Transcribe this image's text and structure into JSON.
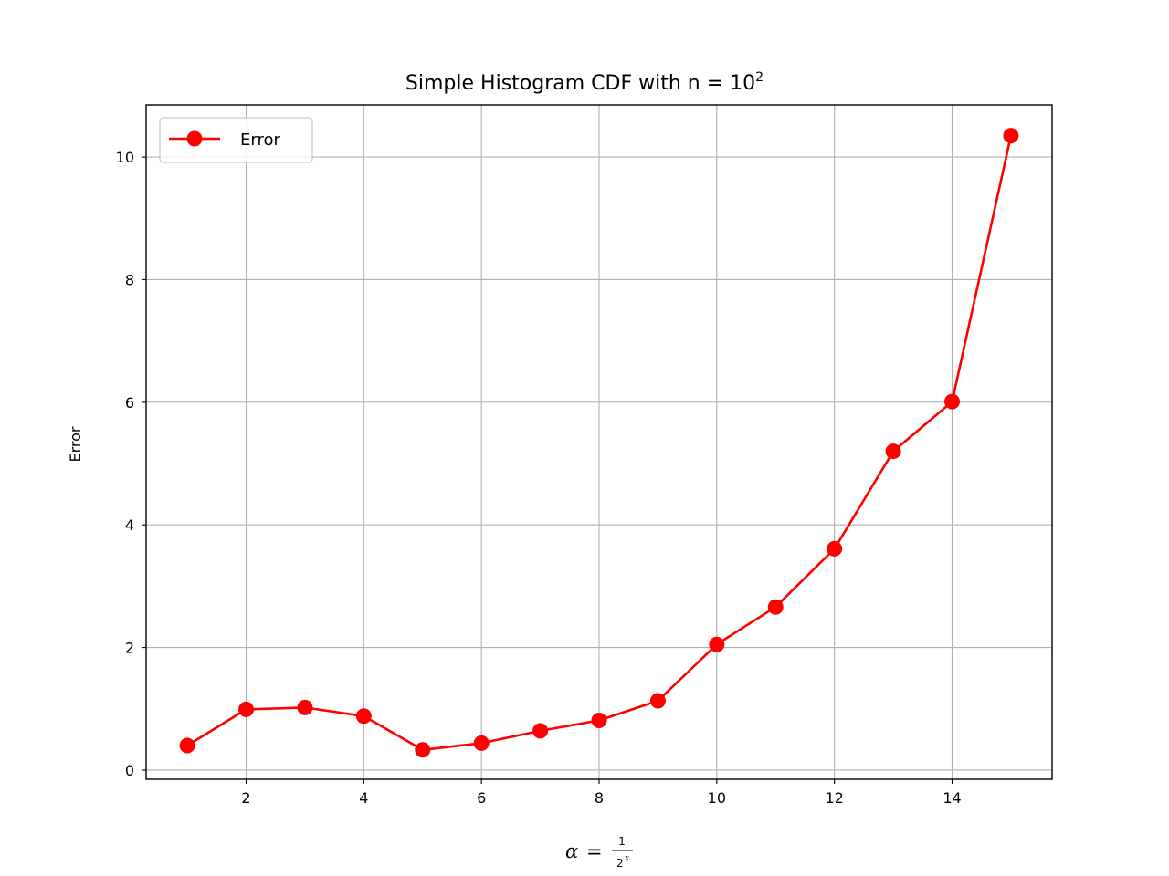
{
  "chart_data": {
    "type": "line",
    "title": "Simple Histogram CDF with n = 10",
    "title_superscript": "2",
    "xlabel": "α = 1/2^x",
    "xlabel_parts": {
      "lhs": "α",
      "eq": "=",
      "num": "1",
      "den_base": "2",
      "den_exp": "x"
    },
    "ylabel": "Error",
    "xlim": [
      0.3,
      15.7
    ],
    "ylim": [
      -0.15,
      10.85
    ],
    "xticks": [
      2,
      4,
      6,
      8,
      10,
      12,
      14
    ],
    "yticks": [
      0,
      2,
      4,
      6,
      8,
      10
    ],
    "grid": true,
    "legend_position": "top-left",
    "series": [
      {
        "name": "Error",
        "color": "#ff0000",
        "marker": "circle",
        "x": [
          1,
          2,
          3,
          4,
          5,
          6,
          7,
          8,
          9,
          10,
          11,
          12,
          13,
          14,
          15
        ],
        "y": [
          0.4,
          0.99,
          1.02,
          0.88,
          0.33,
          0.44,
          0.64,
          0.81,
          1.13,
          2.05,
          2.66,
          3.61,
          5.2,
          6.01,
          10.35
        ]
      }
    ]
  }
}
